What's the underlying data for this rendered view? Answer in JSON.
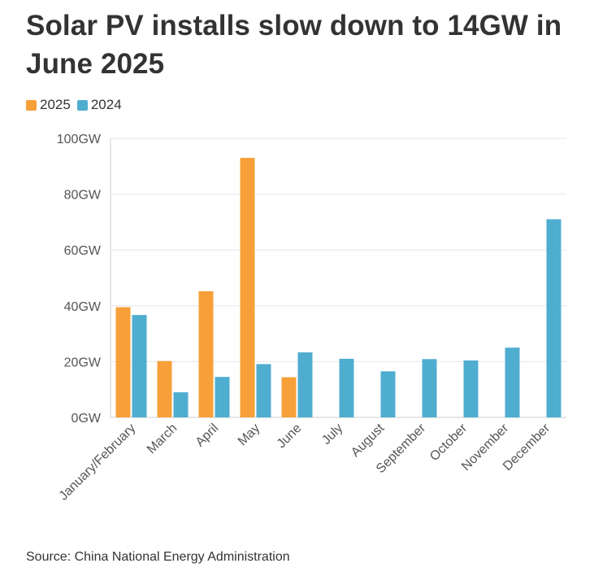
{
  "title": "Solar PV installs slow down to 14GW in June 2025",
  "source": "Source: China National Energy Administration",
  "colors": {
    "2025": "#f7a03a",
    "2024": "#4fadd0",
    "grid": "#e6e6e6",
    "axis": "#cccccc"
  },
  "chart_data": {
    "type": "bar",
    "title": "Solar PV installs slow down to 14GW in June 2025",
    "xlabel": "",
    "ylabel": "",
    "ylim": [
      0,
      100
    ],
    "yticks": [
      "0GW",
      "20GW",
      "40GW",
      "60GW",
      "80GW",
      "100GW"
    ],
    "legend_position": "top-left",
    "grid": true,
    "categories": [
      "January/February",
      "March",
      "April",
      "May",
      "June",
      "July",
      "August",
      "September",
      "October",
      "November",
      "December"
    ],
    "series": [
      {
        "name": "2025",
        "values": [
          39.5,
          20.2,
          45.2,
          93.0,
          14.4,
          null,
          null,
          null,
          null,
          null,
          null
        ]
      },
      {
        "name": "2024",
        "values": [
          36.7,
          9.0,
          14.5,
          19.1,
          23.3,
          21.0,
          16.5,
          20.9,
          20.4,
          25.0,
          71.0
        ]
      }
    ]
  }
}
